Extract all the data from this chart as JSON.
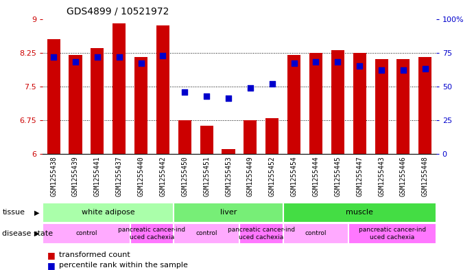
{
  "title": "GDS4899 / 10521972",
  "samples": [
    "GSM1255438",
    "GSM1255439",
    "GSM1255441",
    "GSM1255437",
    "GSM1255440",
    "GSM1255442",
    "GSM1255450",
    "GSM1255451",
    "GSM1255453",
    "GSM1255449",
    "GSM1255452",
    "GSM1255454",
    "GSM1255444",
    "GSM1255445",
    "GSM1255447",
    "GSM1255443",
    "GSM1255446",
    "GSM1255448"
  ],
  "bar_heights": [
    8.55,
    8.2,
    8.35,
    8.9,
    8.15,
    8.85,
    6.75,
    6.62,
    6.1,
    6.75,
    6.8,
    8.2,
    8.25,
    8.3,
    8.25,
    8.1,
    8.1,
    8.15
  ],
  "percentile_values": [
    72,
    68,
    72,
    72,
    67,
    73,
    46,
    43,
    41,
    49,
    52,
    67,
    68,
    68,
    65,
    62,
    62,
    63
  ],
  "ylim_left": [
    6,
    9
  ],
  "ylim_right": [
    0,
    100
  ],
  "yticks_left": [
    6,
    6.75,
    7.5,
    8.25,
    9
  ],
  "yticks_right": [
    0,
    25,
    50,
    75,
    100
  ],
  "bar_color": "#cc0000",
  "dot_color": "#0000cc",
  "tissue_groups": [
    {
      "label": "white adipose",
      "start": 0,
      "end": 6,
      "color": "#aaffaa"
    },
    {
      "label": "liver",
      "start": 6,
      "end": 11,
      "color": "#77ee77"
    },
    {
      "label": "muscle",
      "start": 11,
      "end": 18,
      "color": "#44dd44"
    }
  ],
  "disease_groups": [
    {
      "label": "control",
      "start": 0,
      "end": 4,
      "color": "#ffaaff"
    },
    {
      "label": "pancreatic cancer-ind\nuced cachexia",
      "start": 4,
      "end": 6,
      "color": "#ff77ff"
    },
    {
      "label": "control",
      "start": 6,
      "end": 9,
      "color": "#ffaaff"
    },
    {
      "label": "pancreatic cancer-ind\nuced cachexia",
      "start": 9,
      "end": 11,
      "color": "#ff77ff"
    },
    {
      "label": "control",
      "start": 11,
      "end": 14,
      "color": "#ffaaff"
    },
    {
      "label": "pancreatic cancer-ind\nuced cachexia",
      "start": 14,
      "end": 18,
      "color": "#ff77ff"
    }
  ],
  "bar_width": 0.6,
  "dot_size": 30,
  "background_color": "#ffffff",
  "left_tick_color": "#cc0000",
  "right_tick_color": "#0000cc",
  "xlabel_bg_color": "#cccccc"
}
